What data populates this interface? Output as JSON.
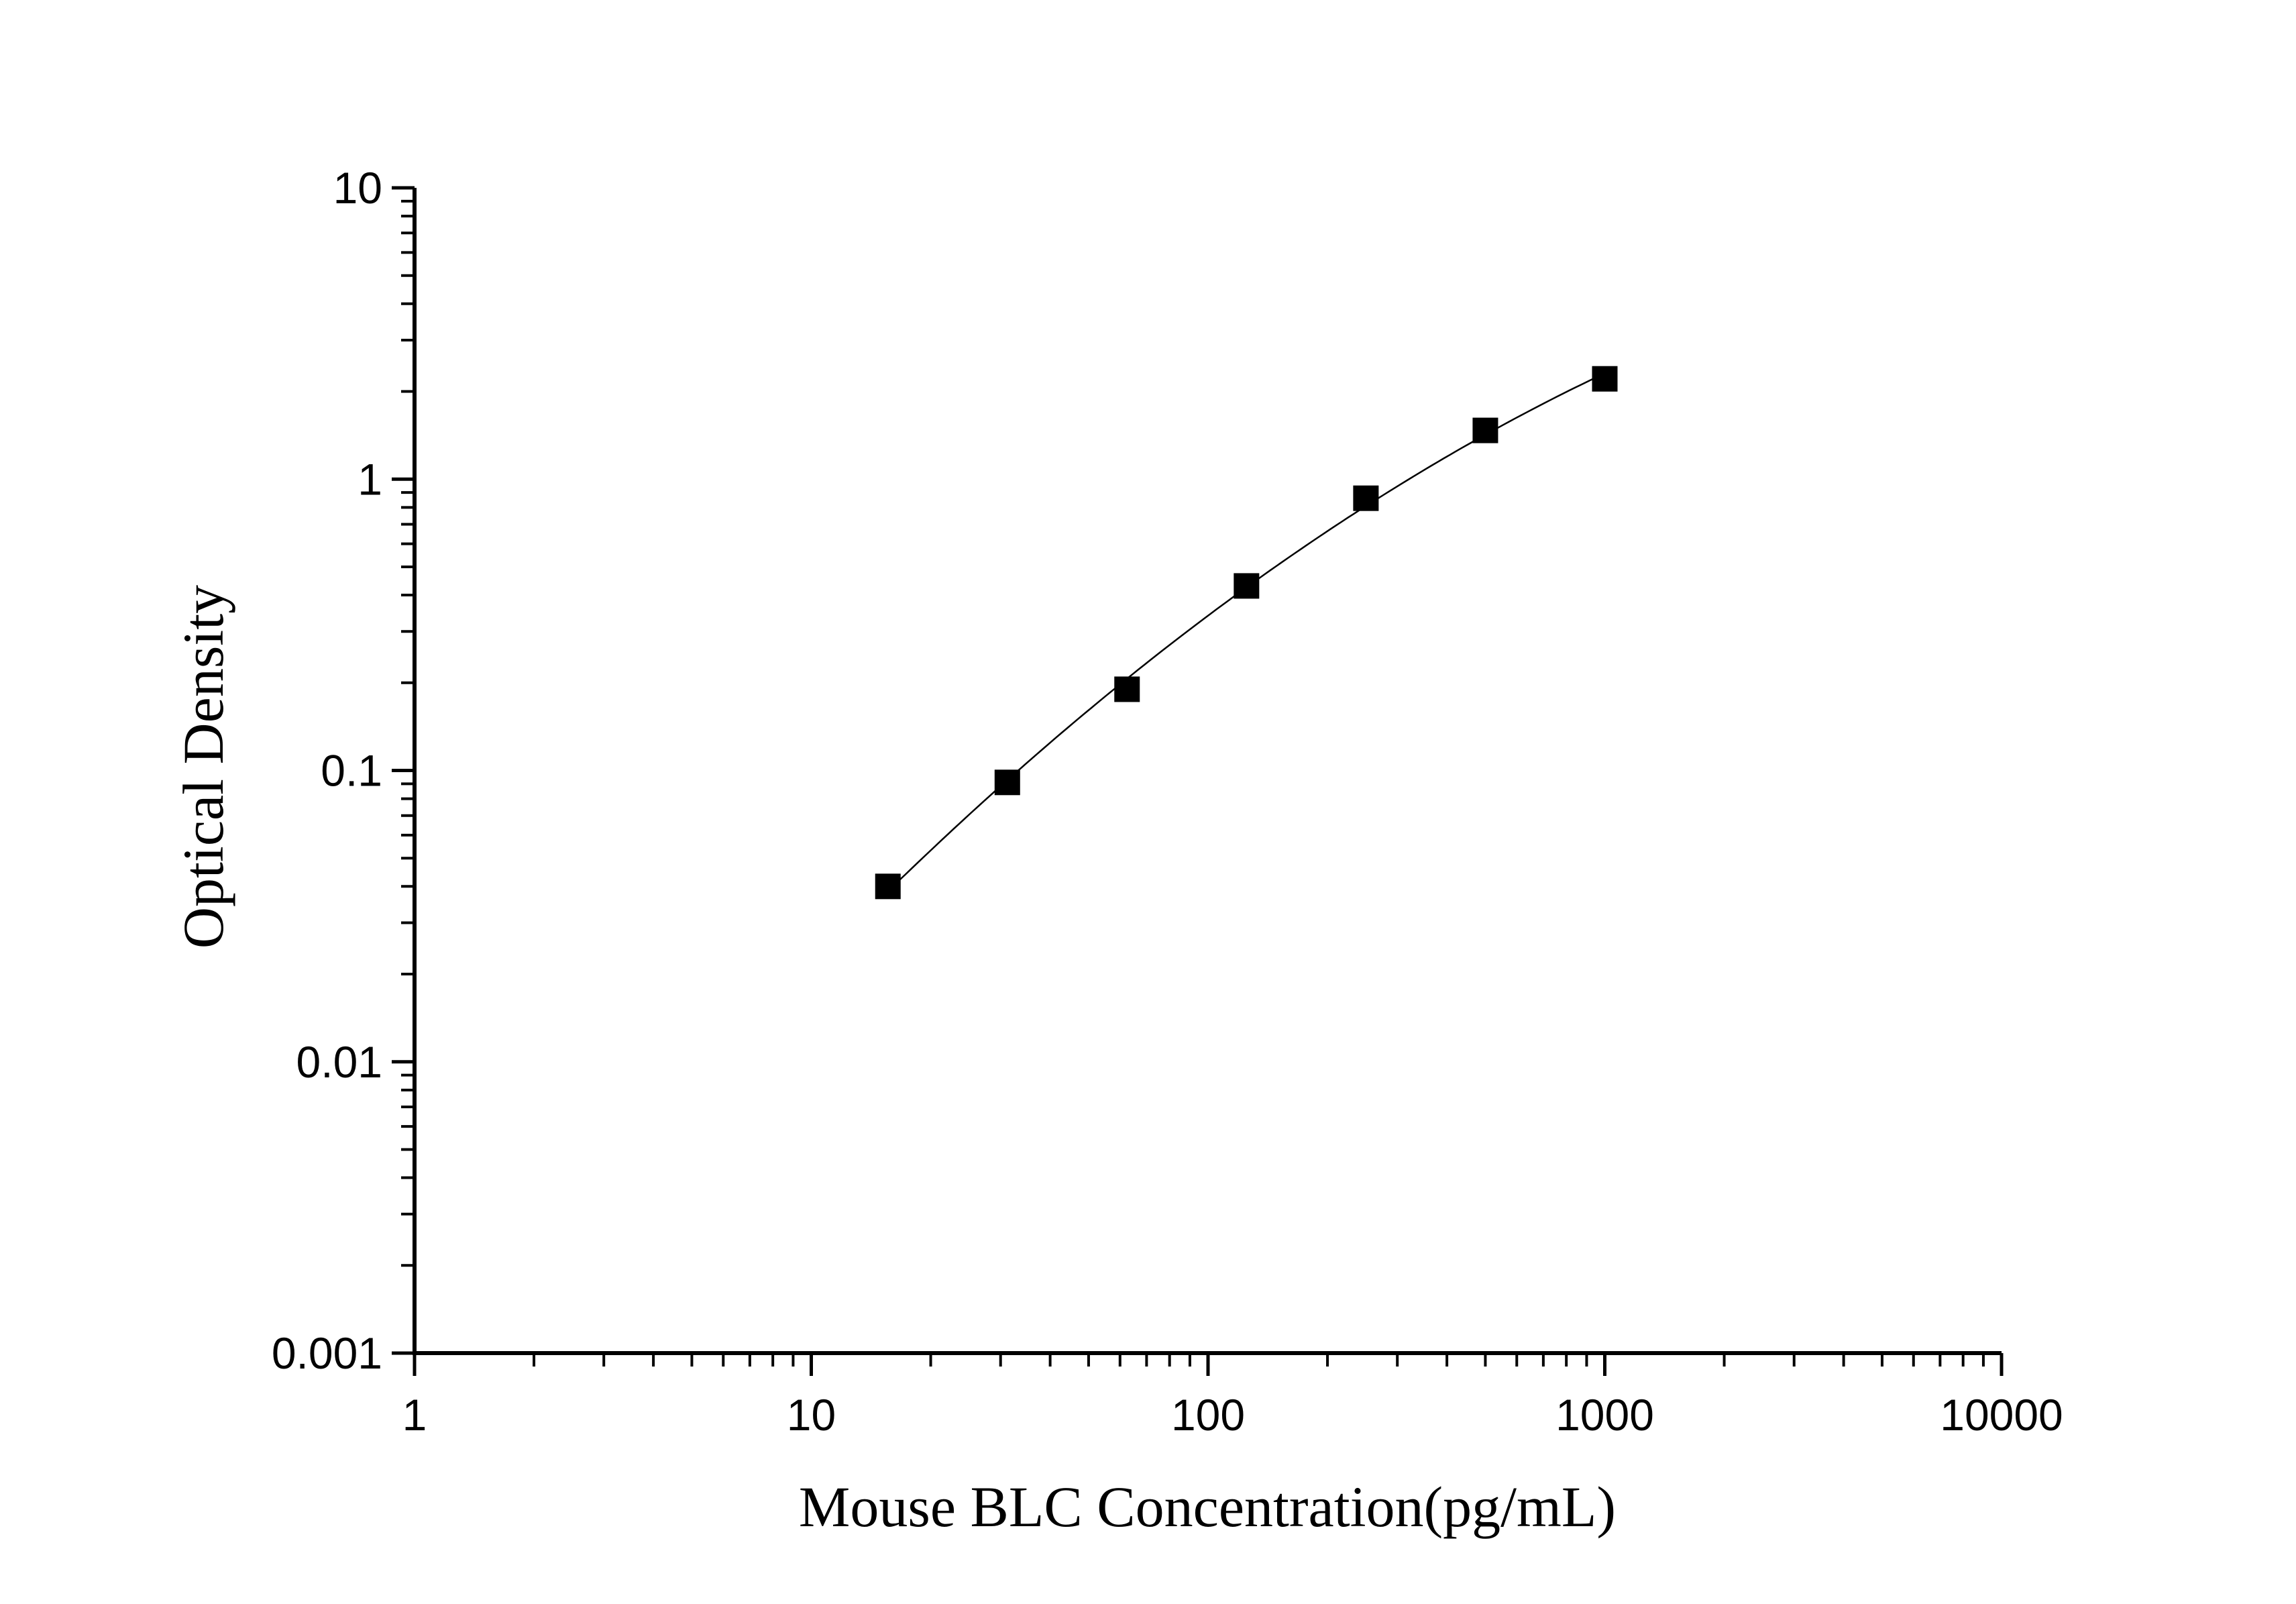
{
  "chart_data": {
    "type": "scatter",
    "title": "",
    "xlabel": "Mouse BLC Concentration(pg/mL)",
    "ylabel": "Optical Density",
    "xscale": "log",
    "yscale": "log",
    "xlim": [
      1,
      10000
    ],
    "ylim": [
      0.001,
      10
    ],
    "xticks": [
      "1",
      "10",
      "100",
      "1000",
      "10000"
    ],
    "yticks": [
      "10",
      "1",
      "0.1",
      "0.01",
      "0.001"
    ],
    "grid": false,
    "legend": "none",
    "series": [
      {
        "marker": "square",
        "color": "#000000",
        "fit_curve": true,
        "x": [
          15.6,
          31.2,
          62.5,
          125,
          250,
          500,
          1000
        ],
        "y": [
          0.04,
          0.091,
          0.19,
          0.43,
          0.86,
          1.47,
          2.21
        ]
      }
    ]
  }
}
